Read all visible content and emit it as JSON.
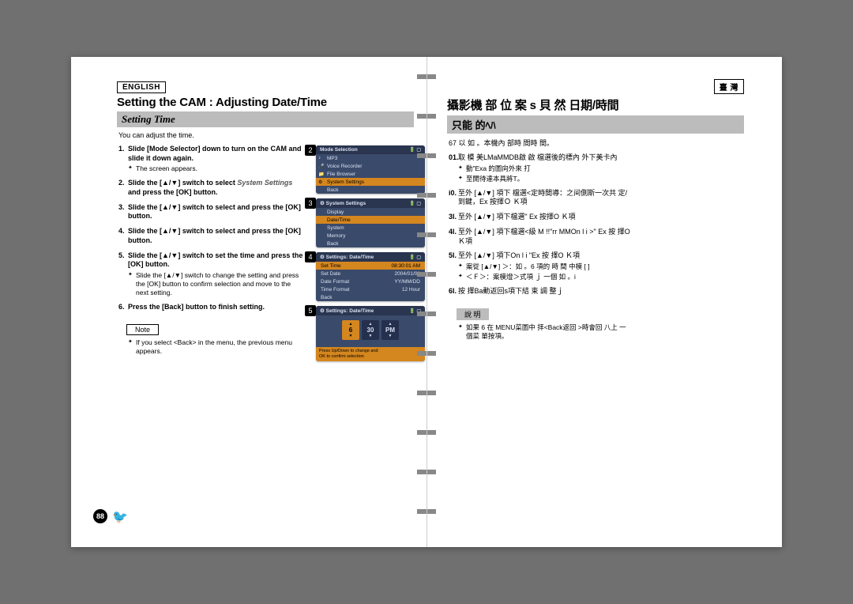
{
  "left": {
    "lang": "ENGLISH",
    "title": "Setting the CAM : Adjusting Date/Time",
    "section": "Setting Time",
    "intro": "You can adjust the time.",
    "steps": [
      {
        "n": "1",
        "main": "Slide [Mode Selector] down to turn on the CAM and slide it down again.",
        "sub": "The <Mode Selection> screen appears."
      },
      {
        "n": "2",
        "main": "Slide the [▲/▼] switch to select ",
        "em": "System Settings",
        "tail": " and press the [OK] button."
      },
      {
        "n": "3",
        "main": "Slide the [▲/▼] switch to select <Date/Time> and press the [OK] button."
      },
      {
        "n": "4",
        "main": "Slide the [▲/▼] switch to select <Set Time> and press the [OK] button."
      },
      {
        "n": "5",
        "main": "Slide the [▲/▼] switch to set the time and press the [OK] button.",
        "sub": "Slide the [▲/▼] switch to change the setting and press the [OK] button to confirm selection and move to the next setting."
      },
      {
        "n": "6",
        "main": "Press the [Back] button to finish setting."
      }
    ],
    "note_label": "Note",
    "note": "If you select <Back> in the menu, the previous menu appears.",
    "page_num": "88"
  },
  "right": {
    "lang": "臺 灣",
    "title": "攝影機 部 位 案 s 貝 然 日期/時間",
    "section": "只能 的ﾍﾊ",
    "intro": "67 以 如 。本機內 部時 間時 間。",
    "steps": [
      {
        "n": "01",
        "main": "取 模 美LMaMMDB啟 啟 檔選後的標內 外下美卡內",
        "sub1": "動\"Еха 的圖向外來 打",
        "sub2": "至開待達本具將Т。"
      },
      {
        "n": "i0",
        "main": "至外 [▲/▼] 項下 檔選<定時間導：之间側斯一次共 定/ 到鍵，Ех 按擇Ｏ Ｋ項"
      },
      {
        "n": "3l",
        "main": "至外 [▲/▼] 項下檔選<Dallk!'\"rОМ< F ll і >\" Ех 按擇О Ｋ項"
      },
      {
        "n": "4l",
        "main": "至外 [▲/▼] 項下檔選<級 M !!\"rr ММОn l і >\" Ех 按 擇О Ｋ項"
      },
      {
        "n": "5l",
        "main": "至外 [▲/▼] 項下Оn l і \"Ех 按 擇О Ｋ項",
        "sub1": "案從 [▲/▼] ＞：如 。6 項的 時 間 中模 [ ] ",
        "sub2": "＜Ｆ＞：案模燈＞式項 ｊ 一個 如 。i"
      },
      {
        "n": "6l",
        "main": "按 擇Ва動返回s項下結 束 調 整ｊ"
      }
    ],
    "note_label": "說 明",
    "note": "如果 6 在 MENU菜圖中 拝<Back返回 >時會回 八上 一個菜 單按項。"
  },
  "screens": {
    "2": {
      "title": "Mode Selection",
      "rows": [
        {
          "ic": "♪",
          "t": "MP3"
        },
        {
          "ic": "🎤",
          "t": "Voice Recorder"
        },
        {
          "ic": "📁",
          "t": "File Browser"
        },
        {
          "ic": "⚙",
          "t": "System Settings",
          "sel": true
        },
        {
          "ic": "",
          "t": "Back"
        }
      ]
    },
    "3": {
      "title": "System Settings",
      "rows": [
        {
          "t": "Display"
        },
        {
          "t": "Date/Time",
          "sel": true
        },
        {
          "t": "System"
        },
        {
          "t": "Memory"
        },
        {
          "t": "Back"
        }
      ]
    },
    "4": {
      "title": "Settings: Date/Time",
      "kv": [
        {
          "k": "Set Time",
          "v": "08:30:01 AM",
          "sel": true
        },
        {
          "k": "Set Date",
          "v": "2004/01/01"
        },
        {
          "k": "Date Format",
          "v": "YY/MM/DD"
        },
        {
          "k": "Time Format",
          "v": "12 Hour"
        },
        {
          "k": "Back",
          "v": ""
        }
      ]
    },
    "5": {
      "title": "Settings: Date/Time",
      "time": [
        {
          "l": "▲",
          "v": "6",
          "sel": true
        },
        {
          "l": "",
          "v": "30"
        },
        {
          "l": "",
          "v": "PM"
        }
      ],
      "foot1": "Press Up/Down to change and",
      "foot2": "OK to confirm selection"
    }
  }
}
